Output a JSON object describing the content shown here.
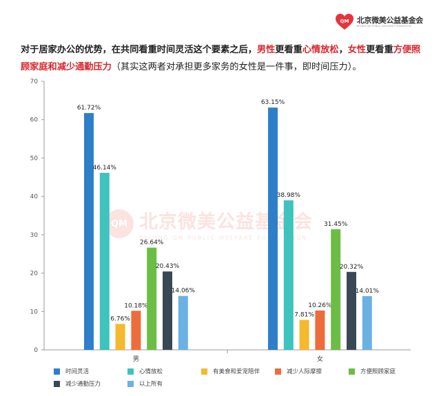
{
  "brand": {
    "name": "北京微美公益基金会",
    "logo_mark": "QM",
    "sub": "BEIJING QM PUBLIC WELFARE FOUNDATION",
    "color": "#e8333a"
  },
  "intro": {
    "p1": "对于居家办公的优势，在共同看重时间灵活这个要素之后，",
    "men": "男性",
    "p2": "更看重",
    "men_item": "心情放松",
    "p3": "，",
    "women": "女性",
    "p4": "更看重",
    "women_item": "方便照顾家庭和减少通勤压力",
    "p5": "（其实这两者对承担更多家务的女性是一件事，即时间压力）。"
  },
  "chart_data": {
    "type": "bar",
    "categories": [
      "男",
      "女"
    ],
    "ylim": [
      0,
      70
    ],
    "yticks": [
      0,
      10,
      20,
      30,
      40,
      50,
      60,
      70
    ],
    "grid": false,
    "legend_position": "bottom",
    "series": [
      {
        "name": "时间灵活",
        "color": "#2e7fc9",
        "values": [
          61.72,
          63.15
        ],
        "labels": [
          "61.72%",
          "63.15%"
        ]
      },
      {
        "name": "心情放松",
        "color": "#3ec3bd",
        "values": [
          46.14,
          38.98
        ],
        "labels": [
          "46.14%",
          "38.98%"
        ]
      },
      {
        "name": "有美食和爱宠陪伴",
        "color": "#f5b92e",
        "values": [
          6.76,
          7.81
        ],
        "labels": [
          "6.76%",
          "7.81%"
        ]
      },
      {
        "name": "减少人际摩擦",
        "color": "#ee6b3c",
        "values": [
          10.18,
          10.26
        ],
        "labels": [
          "10.18%",
          "10.26%"
        ]
      },
      {
        "name": "方便照顾家庭",
        "color": "#6cbd45",
        "values": [
          26.64,
          31.45
        ],
        "labels": [
          "26.64%",
          "31.45%"
        ]
      },
      {
        "name": "减少通勤压力",
        "color": "#384955",
        "values": [
          20.43,
          20.32
        ],
        "labels": [
          "20.43%",
          "20.32%"
        ]
      },
      {
        "name": "以上所有",
        "color": "#6cb1e3",
        "values": [
          14.06,
          14.01
        ],
        "labels": [
          "14.06%",
          "14.01%"
        ]
      }
    ]
  }
}
